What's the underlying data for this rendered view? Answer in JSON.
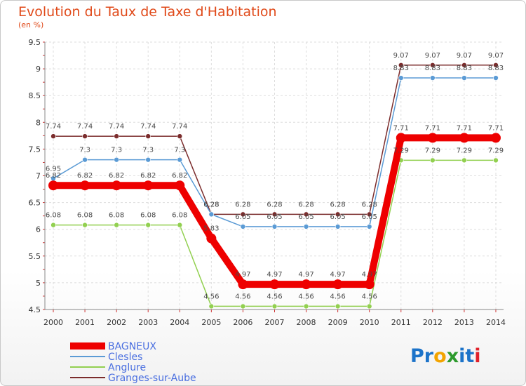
{
  "title": "Evolution du Taux de Taxe d'Habitation",
  "subtitle": "(en %)",
  "logo": {
    "text": "Proxiti",
    "letters": [
      "P",
      "r",
      "o",
      "x",
      "i",
      "t",
      "i"
    ],
    "colors": [
      "#1c73c9",
      "#1c73c9",
      "#f3a400",
      "#2d9a2d",
      "#1c73c9",
      "#1c73c9",
      "#e0212a"
    ]
  },
  "chart_data": {
    "type": "line",
    "title": "Evolution du Taux de Taxe d'Habitation",
    "ylabel": "(en %)",
    "xlabel": "",
    "x": [
      2000,
      2001,
      2002,
      2003,
      2004,
      2005,
      2006,
      2007,
      2008,
      2009,
      2010,
      2011,
      2012,
      2013,
      2014
    ],
    "x_labels": [
      "2000",
      "2001",
      "2002",
      "2003",
      "2004",
      "2005",
      "2006",
      "2007",
      "2008",
      "2009",
      "2010",
      "2011",
      "2012",
      "2013",
      "2014"
    ],
    "ylim": [
      4.5,
      9.5
    ],
    "yticks": [
      4.5,
      5,
      5.5,
      6,
      6.5,
      7,
      7.5,
      8,
      8.5,
      9,
      9.5
    ],
    "ytick_labels": [
      "4.5",
      "5",
      "5.5",
      "6",
      "6.5",
      "7",
      "7.5",
      "8",
      "8.5",
      "9",
      "9.5"
    ],
    "grid": true,
    "legend_position": "bottom-left",
    "series": [
      {
        "name": "BAGNEUX",
        "color": "#ee0000",
        "values": [
          6.82,
          6.82,
          6.82,
          6.82,
          6.82,
          5.83,
          4.97,
          4.97,
          4.97,
          4.97,
          4.97,
          7.71,
          7.71,
          7.71,
          7.71
        ],
        "labels": [
          "6.82",
          "6.82",
          "6.82",
          "6.82",
          "6.82",
          "5.83",
          "4.97",
          "4.97",
          "4.97",
          "4.97",
          "4.97",
          "7.71",
          "7.71",
          "7.71",
          "7.71"
        ]
      },
      {
        "name": "Clesles",
        "color": "#5b9bd5",
        "values": [
          6.95,
          7.3,
          7.3,
          7.3,
          7.3,
          6.28,
          6.05,
          6.05,
          6.05,
          6.05,
          6.05,
          8.83,
          8.83,
          8.83,
          8.83
        ],
        "labels": [
          "6.95",
          "7.3",
          "7.3",
          "7.3",
          "7.3",
          "6.28",
          "6.05",
          "6.05",
          "6.05",
          "6.05",
          "6.05",
          "8.83",
          "8.83",
          "8.83",
          "8.83"
        ]
      },
      {
        "name": "Anglure",
        "color": "#92d050",
        "values": [
          6.08,
          6.08,
          6.08,
          6.08,
          6.08,
          4.56,
          4.56,
          4.56,
          4.56,
          4.56,
          4.56,
          7.29,
          7.29,
          7.29,
          7.29
        ],
        "labels": [
          "6.08",
          "6.08",
          "6.08",
          "6.08",
          "6.08",
          "4.56",
          "4.56",
          "4.56",
          "4.56",
          "4.56",
          "4.56",
          "7.29",
          "7.29",
          "7.29",
          "7.29"
        ]
      },
      {
        "name": "Granges-sur-Aube",
        "color": "#7b2c2c",
        "values": [
          7.74,
          7.74,
          7.74,
          7.74,
          7.74,
          6.28,
          6.28,
          6.28,
          6.28,
          6.28,
          6.28,
          9.07,
          9.07,
          9.07,
          9.07
        ],
        "labels": [
          "7.74",
          "7.74",
          "7.74",
          "7.74",
          "7.74",
          "6.28",
          "6.28",
          "6.28",
          "6.28",
          "6.28",
          "6.28",
          "9.07",
          "9.07",
          "9.07",
          "9.07"
        ]
      }
    ]
  }
}
